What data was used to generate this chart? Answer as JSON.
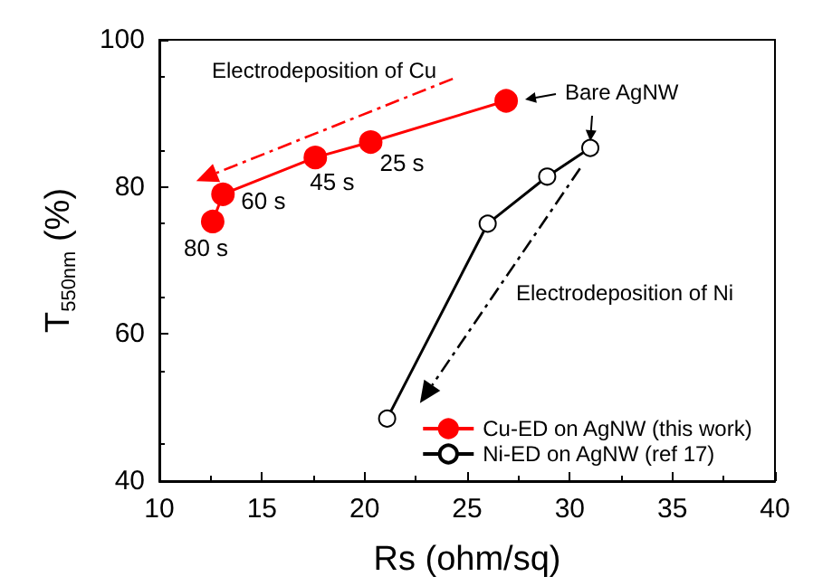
{
  "chart_data": {
    "type": "line",
    "xlabel": "Rs (ohm/sq)",
    "ylabel": "T$_{550nm}$ (%)",
    "xlim": [
      10,
      40
    ],
    "xticks": [
      10,
      15,
      20,
      25,
      30,
      35,
      40
    ],
    "ylim": [
      40,
      100
    ],
    "yticks": [
      40,
      60,
      80,
      100
    ],
    "grid": false,
    "legend": "bottom right",
    "marker": "circle",
    "line_style": "solid",
    "series": [
      {
        "name": "Cu-ED on AgNW (this work)",
        "color": "#ff0000",
        "x": [
          26.9,
          20.3,
          17.6,
          13.1,
          12.6
        ],
        "values": [
          91.7,
          86.1,
          84.0,
          79.0,
          75.3
        ]
      },
      {
        "name": "Ni-ED on AgNW (ref 17)",
        "color": "#000000",
        "x": [
          31.0,
          28.9,
          26.0,
          21.1
        ],
        "values": [
          85.3,
          81.4,
          75.0,
          48.5
        ]
      }
    ],
    "annotations": [
      "Electrodeposition of Cu",
      "Bare AgNW",
      "Electrodeposition of Ni",
      {
        "text": "25 s",
        "x": 20.3,
        "y": 86.1
      },
      {
        "text": "45 s",
        "x": 17.6,
        "y": 84.0
      },
      {
        "text": "60 s",
        "x": 13.1,
        "y": 79.0
      },
      {
        "text": "80 s",
        "x": 12.6,
        "y": 75.3
      }
    ]
  }
}
